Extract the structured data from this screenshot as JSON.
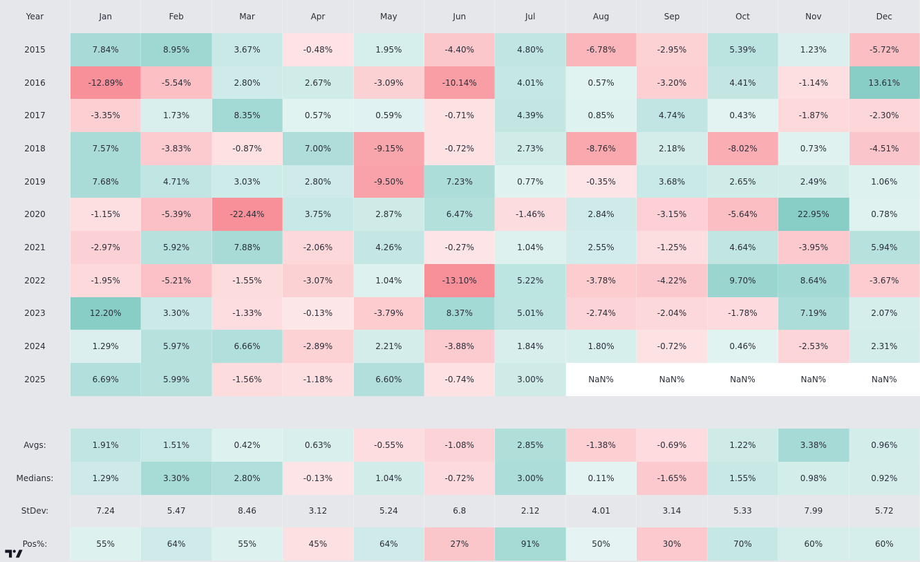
{
  "chart_data": {
    "type": "table",
    "corner_label": "Year",
    "columns": [
      "Jan",
      "Feb",
      "Mar",
      "Apr",
      "May",
      "Jun",
      "Jul",
      "Aug",
      "Sep",
      "Oct",
      "Nov",
      "Dec"
    ],
    "rows": [
      {
        "year": "2015",
        "values": [
          "7.84%",
          "8.95%",
          "3.67%",
          "-0.48%",
          "1.95%",
          "-4.40%",
          "4.80%",
          "-6.78%",
          "-2.95%",
          "5.39%",
          "1.23%",
          "-5.72%"
        ]
      },
      {
        "year": "2016",
        "values": [
          "-12.89%",
          "-5.54%",
          "2.80%",
          "2.67%",
          "-3.09%",
          "-10.14%",
          "4.01%",
          "0.57%",
          "-3.20%",
          "4.41%",
          "-1.14%",
          "13.61%"
        ]
      },
      {
        "year": "2017",
        "values": [
          "-3.35%",
          "1.73%",
          "8.35%",
          "0.57%",
          "0.59%",
          "-0.71%",
          "4.39%",
          "0.85%",
          "4.74%",
          "0.43%",
          "-1.87%",
          "-2.30%"
        ]
      },
      {
        "year": "2018",
        "values": [
          "7.57%",
          "-3.83%",
          "-0.87%",
          "7.00%",
          "-9.15%",
          "-0.72%",
          "2.73%",
          "-8.76%",
          "2.18%",
          "-8.02%",
          "0.73%",
          "-4.51%"
        ]
      },
      {
        "year": "2019",
        "values": [
          "7.68%",
          "4.71%",
          "3.03%",
          "2.80%",
          "-9.50%",
          "7.23%",
          "0.77%",
          "-0.35%",
          "3.68%",
          "2.65%",
          "2.49%",
          "1.06%"
        ]
      },
      {
        "year": "2020",
        "values": [
          "-1.15%",
          "-5.39%",
          "-22.44%",
          "3.75%",
          "2.87%",
          "6.47%",
          "-1.46%",
          "2.84%",
          "-3.15%",
          "-5.64%",
          "22.95%",
          "0.78%"
        ]
      },
      {
        "year": "2021",
        "values": [
          "-2.97%",
          "5.92%",
          "7.88%",
          "-2.06%",
          "4.26%",
          "-0.27%",
          "1.04%",
          "2.55%",
          "-1.25%",
          "4.64%",
          "-3.95%",
          "5.94%"
        ]
      },
      {
        "year": "2022",
        "values": [
          "-1.95%",
          "-5.21%",
          "-1.55%",
          "-3.07%",
          "1.04%",
          "-13.10%",
          "5.22%",
          "-3.78%",
          "-4.22%",
          "9.70%",
          "8.64%",
          "-3.67%"
        ]
      },
      {
        "year": "2023",
        "values": [
          "12.20%",
          "3.30%",
          "-1.33%",
          "-0.13%",
          "-3.79%",
          "8.37%",
          "5.01%",
          "-2.74%",
          "-2.04%",
          "-1.78%",
          "7.19%",
          "2.07%"
        ]
      },
      {
        "year": "2024",
        "values": [
          "1.29%",
          "5.97%",
          "6.66%",
          "-2.89%",
          "2.21%",
          "-3.88%",
          "1.84%",
          "1.80%",
          "-0.72%",
          "0.46%",
          "-2.53%",
          "2.31%"
        ]
      },
      {
        "year": "2025",
        "values": [
          "6.69%",
          "5.99%",
          "-1.56%",
          "-1.18%",
          "6.60%",
          "-0.74%",
          "3.00%",
          "NaN%",
          "NaN%",
          "NaN%",
          "NaN%",
          "NaN%"
        ]
      }
    ],
    "stats": [
      {
        "label": "Avgs:",
        "values": [
          "1.91%",
          "1.51%",
          "0.42%",
          "0.63%",
          "-0.55%",
          "-1.08%",
          "2.85%",
          "-1.38%",
          "-0.69%",
          "1.22%",
          "3.38%",
          "0.96%"
        ],
        "colored": true
      },
      {
        "label": "Medians:",
        "values": [
          "1.29%",
          "3.30%",
          "2.80%",
          "-0.13%",
          "1.04%",
          "-0.72%",
          "3.00%",
          "0.11%",
          "-1.65%",
          "1.55%",
          "0.98%",
          "0.92%"
        ],
        "colored": true
      },
      {
        "label": "StDev:",
        "values": [
          "7.24",
          "5.47",
          "8.46",
          "3.12",
          "5.24",
          "6.8",
          "2.12",
          "4.01",
          "3.14",
          "5.33",
          "7.99",
          "5.72"
        ],
        "colored": false
      },
      {
        "label": "Pos%:",
        "values": [
          "55%",
          "64%",
          "55%",
          "45%",
          "64%",
          "27%",
          "91%",
          "50%",
          "30%",
          "70%",
          "60%",
          "60%"
        ],
        "colored": true,
        "center": 50
      }
    ],
    "colors": {
      "positive": "#26a69a",
      "negative": "#f23645",
      "nan": "#ffffff",
      "background": "#e6e7ea"
    },
    "legend": "none",
    "grid": true
  }
}
